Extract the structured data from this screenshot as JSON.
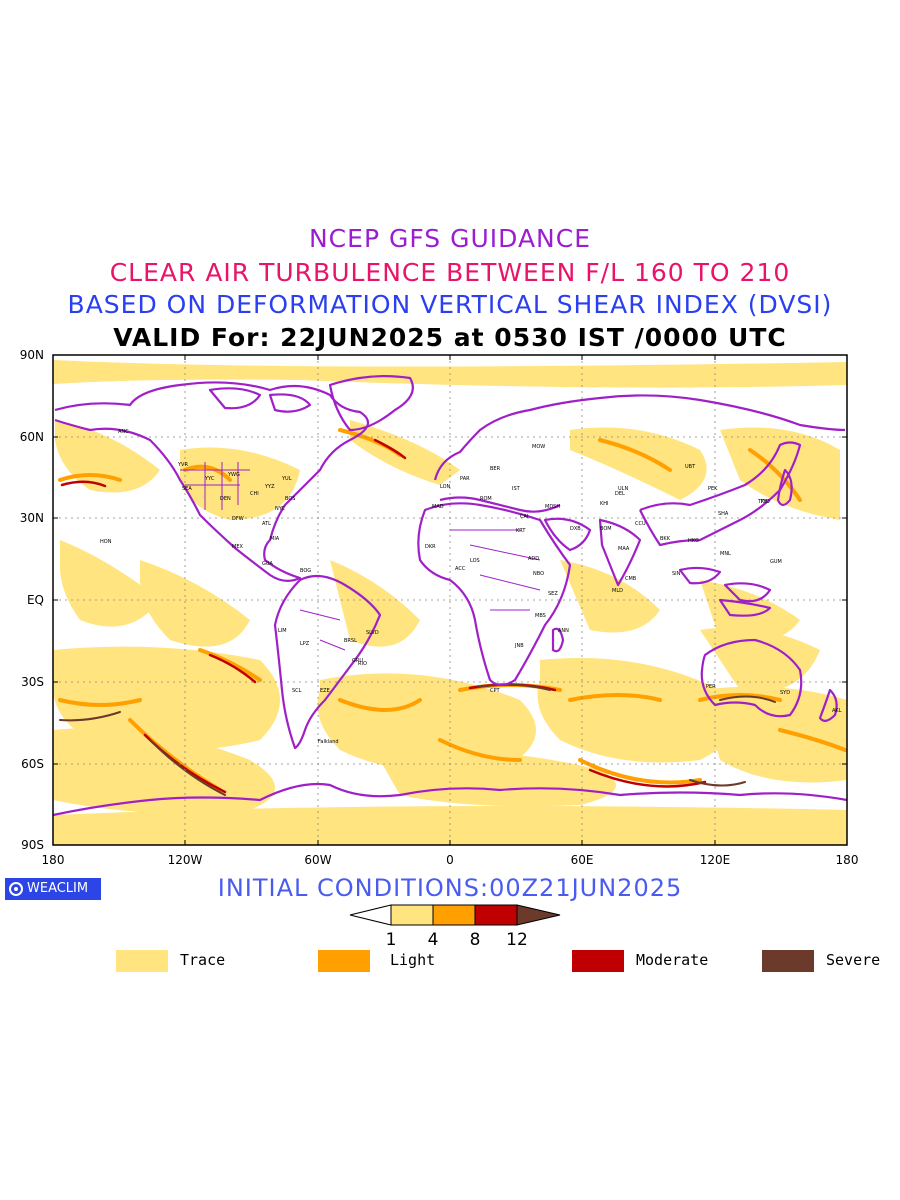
{
  "titles": {
    "line1": "NCEP GFS GUIDANCE",
    "line2": "CLEAR AIR TURBULENCE BETWEEN F/L 160 TO 210",
    "line3": "BASED ON DEFORMATION VERTICAL SHEAR INDEX (DVSI)",
    "line4": "VALID For: 22JUN2025 at 0530 IST /0000 UTC"
  },
  "axes": {
    "lat_labels": [
      "90N",
      "60N",
      "30N",
      "EQ",
      "30S",
      "60S",
      "90S"
    ],
    "lon_labels": [
      "180",
      "120W",
      "60W",
      "0",
      "60E",
      "120E",
      "180"
    ]
  },
  "brand": {
    "label": "WEACLIM"
  },
  "initial_conditions": "INITIAL CONDITIONS:00Z21JUN2025",
  "colorbar": {
    "ticks": [
      "1",
      "4",
      "8",
      "12"
    ],
    "colors": [
      "#ffffff",
      "#ffe480",
      "#ffa000",
      "#c00000",
      "#6b3a2a"
    ]
  },
  "legend": [
    {
      "label": "Trace",
      "color": "#ffe480"
    },
    {
      "label": "Light",
      "color": "#ffa000"
    },
    {
      "label": "Moderate",
      "color": "#c00000"
    },
    {
      "label": "Severe",
      "color": "#6b3a2a"
    }
  ],
  "colors": {
    "coastline": "#a020c8",
    "trace": "#ffe480",
    "light": "#ffa000",
    "moderate": "#c00000",
    "severe": "#6b3a2a"
  },
  "stations": [
    "ANC",
    "YVR",
    "SEA",
    "YYC",
    "YWG",
    "YYZ",
    "YUL",
    "CHI",
    "BOS",
    "NYC",
    "DEN",
    "DFW",
    "ATL",
    "MIA",
    "MEX",
    "HON",
    "GUA",
    "BOG",
    "LIM",
    "LPZ",
    "SCL",
    "EZE",
    "GRU",
    "BRSL",
    "SLVD",
    "RIO",
    "Falkland",
    "LON",
    "PAR",
    "MAD",
    "ROM",
    "BER",
    "MOW",
    "IST",
    "CAI",
    "DXB",
    "KHI",
    "DEL",
    "BOM",
    "CCU",
    "MAA",
    "CMB",
    "MLD",
    "BKK",
    "SIN",
    "HKG",
    "PEK",
    "SHA",
    "TYO",
    "MNL",
    "GUM",
    "PER",
    "SYD",
    "AKL",
    "CPT",
    "JNB",
    "NBO",
    "ADD",
    "LOS",
    "DKR",
    "ACC",
    "KRT",
    "MBS",
    "ANN",
    "SEZ",
    "MDSH",
    "ULN",
    "UBT",
    "TKY"
  ]
}
